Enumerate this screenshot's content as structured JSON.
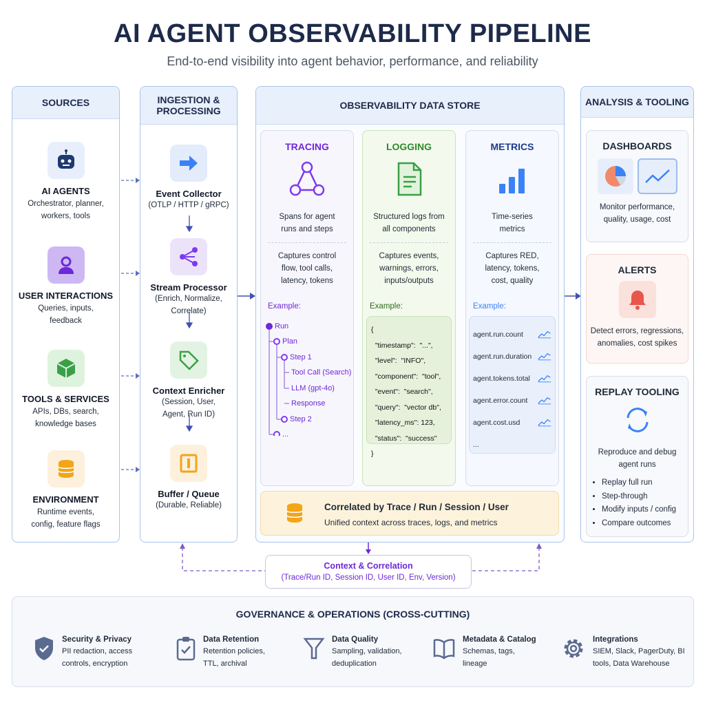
{
  "title": "AI AGENT OBSERVABILITY PIPELINE",
  "subtitle": "End-to-end visibility into agent behavior, performance, and reliability",
  "sources": {
    "header": "SOURCES",
    "items": [
      {
        "title": "AI AGENTS",
        "desc": "Orchestrator, planner, workers, tools",
        "icon": "robot-icon"
      },
      {
        "title": "USER INTERACTIONS",
        "desc": "Queries, inputs, feedback",
        "icon": "user-icon"
      },
      {
        "title": "TOOLS & SERVICES",
        "desc": "APIs, DBs, search, knowledge bases",
        "icon": "cube-icon"
      },
      {
        "title": "ENVIRONMENT",
        "desc": "Runtime events, config, feature flags",
        "icon": "database-icon"
      }
    ]
  },
  "ingestion": {
    "header": "INGESTION & PROCESSING",
    "items": [
      {
        "title": "Event Collector",
        "desc": "(OTLP / HTTP / gRPC)",
        "icon": "arrow-right-icon"
      },
      {
        "title": "Stream Processor",
        "desc": "(Enrich, Normalize, Correlate)",
        "icon": "share-icon"
      },
      {
        "title": "Context Enricher",
        "desc": "(Session, User, Agent, Run ID)",
        "icon": "tag-icon"
      },
      {
        "title": "Buffer / Queue",
        "desc": "(Durable, Reliable)",
        "icon": "buffer-icon"
      }
    ]
  },
  "store": {
    "header": "OBSERVABILITY DATA STORE",
    "tracing": {
      "title": "TRACING",
      "summary": "Spans for agent runs and steps",
      "captures": "Captures control flow, tool calls, latency, tokens",
      "example_label": "Example:",
      "tree": [
        "Run",
        "Plan",
        "Step 1",
        "Tool Call (Search)",
        "LLM (gpt-4o)",
        "Response",
        "Step 2",
        "..."
      ]
    },
    "logging": {
      "title": "LOGGING",
      "summary": "Structured logs from all components",
      "captures": "Captures events, warnings, errors, inputs/outputs",
      "example_label": "Example:",
      "code": "{\n  \"timestamp\":  \"...\",\n  \"level\":  \"INFO\",\n  \"component\":  \"tool\",\n  \"event\":  \"search\",\n  \"query\":  \"vector db\",\n  \"latency_ms\": 123,\n  \"status\":  \"success\"\n}"
    },
    "metrics": {
      "title": "METRICS",
      "summary": "Time-series metrics",
      "captures": "Captures RED, latency, tokens, cost, quality",
      "example_label": "Example:",
      "items": [
        "agent.run.count",
        "agent.run.duration",
        "agent.tokens.total",
        "agent.error.count",
        "agent.cost.usd",
        "..."
      ]
    },
    "correlated": {
      "title": "Correlated by Trace / Run / Session / User",
      "desc": "Unified context across traces, logs, and metrics"
    }
  },
  "analysis": {
    "header": "ANALYSIS & TOOLING",
    "dashboards": {
      "title": "DASHBOARDS",
      "desc": "Monitor performance, quality, usage, cost"
    },
    "alerts": {
      "title": "ALERTS",
      "desc": "Detect errors, regressions, anomalies, cost spikes"
    },
    "replay": {
      "title": "REPLAY TOOLING",
      "desc": "Reproduce and debug agent runs",
      "bullets": [
        "Replay full run",
        "Step-through",
        "Modify inputs / config",
        "Compare outcomes"
      ]
    }
  },
  "context": {
    "title": "Context & Correlation",
    "desc": "(Trace/Run ID, Session ID, User ID, Env, Version)"
  },
  "governance": {
    "header": "GOVERNANCE & OPERATIONS (CROSS-CUTTING)",
    "items": [
      {
        "title": "Security & Privacy",
        "desc": "PII redaction, access controls, encryption",
        "icon": "shield-icon"
      },
      {
        "title": "Data Retention",
        "desc": "Retention policies, TTL, archival",
        "icon": "clipboard-check-icon"
      },
      {
        "title": "Data Quality",
        "desc": "Sampling, validation, deduplication",
        "icon": "filter-icon"
      },
      {
        "title": "Metadata & Catalog",
        "desc": "Schemas, tags, lineage",
        "icon": "book-icon"
      },
      {
        "title": "Integrations",
        "desc": "SIEM, Slack, PagerDuty, BI tools, Data Warehouse",
        "icon": "gear-icon"
      }
    ]
  },
  "colors": {
    "tracing": "#6d28d9",
    "logging": "#2f8a2f",
    "metrics": "#1e3a8a",
    "accent": "#3f51b5",
    "alert": "#e8564b"
  }
}
